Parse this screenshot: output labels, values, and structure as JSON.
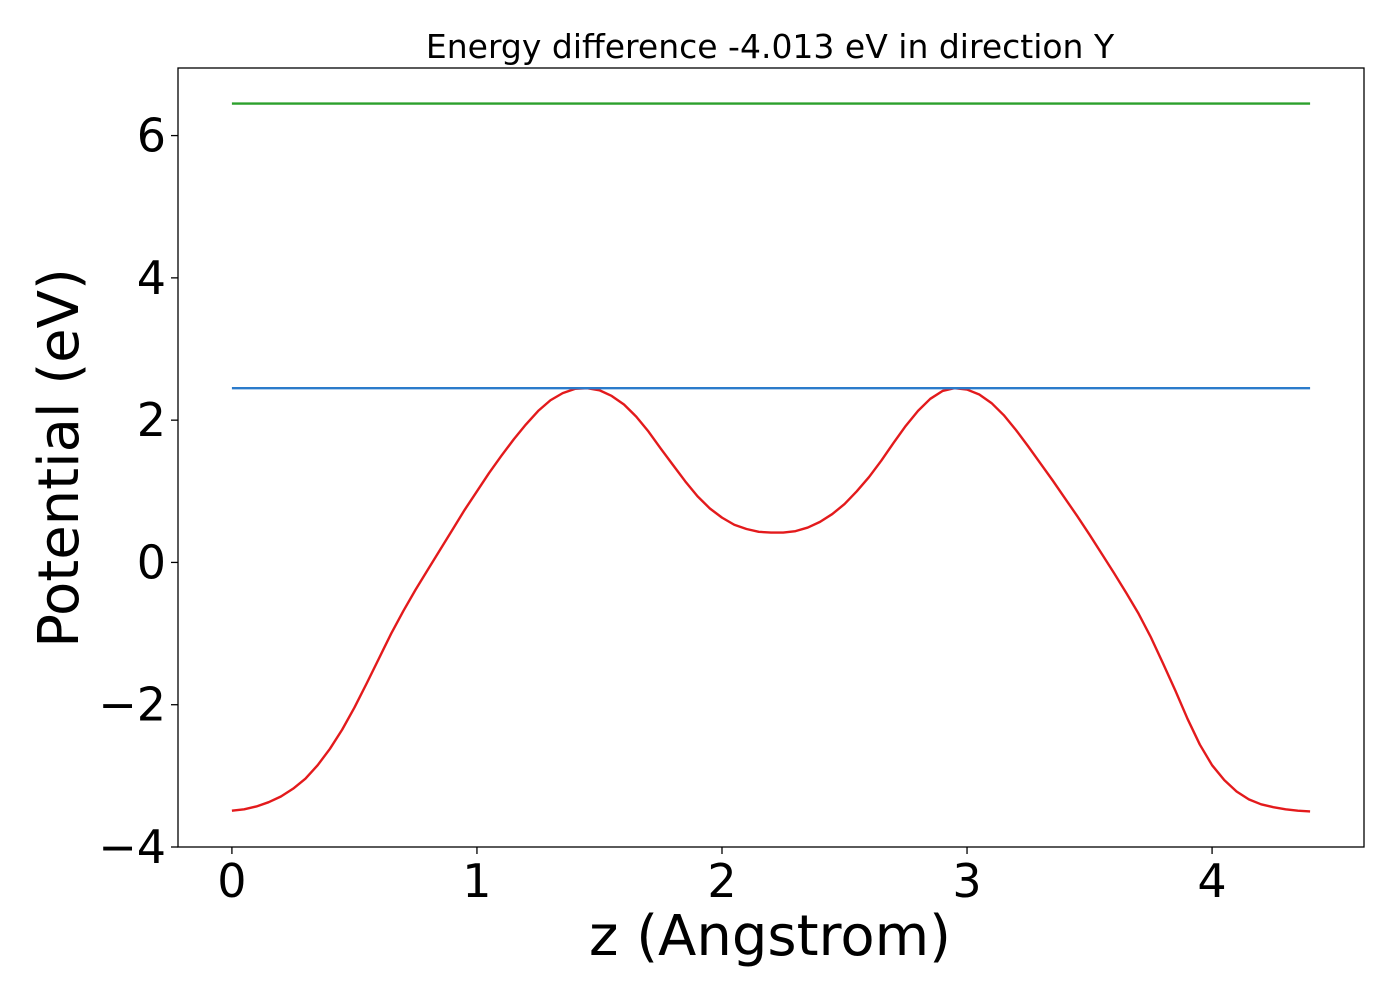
{
  "chart_data": {
    "type": "line",
    "title": "Energy difference -4.013 eV in direction Y",
    "xlabel": "z (Angstrom)",
    "ylabel": "Potential (eV)",
    "xlim": [
      -0.22,
      4.62
    ],
    "ylim": [
      -4.0,
      6.95
    ],
    "xticks": [
      0,
      1,
      2,
      3,
      4
    ],
    "yticks": [
      -4,
      -2,
      0,
      2,
      4,
      6
    ],
    "xtick_labels": [
      "0",
      "1",
      "2",
      "3",
      "4"
    ],
    "ytick_labels": [
      "−4",
      "−2",
      "0",
      "2",
      "4",
      "6"
    ],
    "grid": false,
    "legend": "none",
    "series": [
      {
        "color": "#e31a1c",
        "x": [
          0.0,
          0.05,
          0.1,
          0.15,
          0.2,
          0.25,
          0.3,
          0.35,
          0.4,
          0.45,
          0.5,
          0.55,
          0.6,
          0.65,
          0.7,
          0.75,
          0.8,
          0.85,
          0.9,
          0.95,
          1.0,
          1.05,
          1.1,
          1.15,
          1.2,
          1.25,
          1.3,
          1.35,
          1.4,
          1.45,
          1.5,
          1.55,
          1.6,
          1.65,
          1.7,
          1.75,
          1.8,
          1.85,
          1.9,
          1.95,
          2.0,
          2.05,
          2.1,
          2.15,
          2.2,
          2.25,
          2.3,
          2.35,
          2.4,
          2.45,
          2.5,
          2.55,
          2.6,
          2.65,
          2.7,
          2.75,
          2.8,
          2.85,
          2.9,
          2.95,
          3.0,
          3.05,
          3.1,
          3.15,
          3.2,
          3.25,
          3.3,
          3.35,
          3.4,
          3.45,
          3.5,
          3.55,
          3.6,
          3.65,
          3.7,
          3.75,
          3.8,
          3.85,
          3.9,
          3.95,
          4.0,
          4.05,
          4.1,
          4.15,
          4.2,
          4.25,
          4.3,
          4.35,
          4.4
        ],
        "values": [
          -3.49,
          -3.47,
          -3.43,
          -3.37,
          -3.29,
          -3.18,
          -3.04,
          -2.85,
          -2.62,
          -2.35,
          -2.04,
          -1.7,
          -1.35,
          -1.0,
          -0.68,
          -0.38,
          -0.1,
          0.18,
          0.46,
          0.74,
          1.0,
          1.26,
          1.5,
          1.73,
          1.94,
          2.13,
          2.28,
          2.38,
          2.44,
          2.45,
          2.42,
          2.34,
          2.22,
          2.05,
          1.84,
          1.6,
          1.37,
          1.14,
          0.93,
          0.76,
          0.63,
          0.53,
          0.47,
          0.43,
          0.42,
          0.42,
          0.44,
          0.49,
          0.57,
          0.68,
          0.82,
          1.0,
          1.2,
          1.43,
          1.68,
          1.92,
          2.13,
          2.3,
          2.41,
          2.45,
          2.43,
          2.36,
          2.24,
          2.07,
          1.86,
          1.63,
          1.39,
          1.15,
          0.9,
          0.65,
          0.39,
          0.12,
          -0.15,
          -0.43,
          -0.72,
          -1.05,
          -1.42,
          -1.8,
          -2.2,
          -2.56,
          -2.85,
          -3.06,
          -3.22,
          -3.33,
          -3.4,
          -3.44,
          -3.47,
          -3.49,
          -3.5
        ]
      },
      {
        "color": "#2b7bcb",
        "x": [
          0.0,
          4.4
        ],
        "values": [
          2.45,
          2.45
        ]
      },
      {
        "color": "#2ca02c",
        "x": [
          0.0,
          4.4
        ],
        "values": [
          6.45,
          6.45
        ]
      }
    ]
  }
}
